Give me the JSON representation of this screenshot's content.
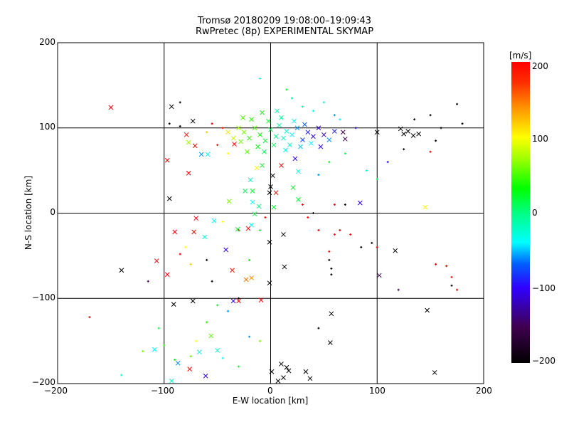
{
  "chart_data": {
    "type": "scatter",
    "title": "Tromsø 20180209 19:08:00–19:09:43",
    "subtitle": "RwPretec (8p) EXPERIMENTAL SKYMAP",
    "xlabel": "E-W location [km]",
    "ylabel": "N-S location [km]",
    "xlim": [
      -200,
      200
    ],
    "ylim": [
      -200,
      200
    ],
    "xticks": [
      "−200",
      "−100",
      "0",
      "100",
      "200"
    ],
    "yticks": [
      "−200",
      "−100",
      "0",
      "100",
      "200"
    ],
    "grid": true,
    "colorbar": {
      "label": "[m/s]",
      "range": [
        -200,
        200
      ],
      "ticks": [
        "200",
        "100",
        "0",
        "−100",
        "−200"
      ]
    },
    "large_markers": [
      [
        -150,
        124,
        200
      ],
      [
        -93,
        125,
        -200
      ],
      [
        -73,
        108,
        -200
      ],
      [
        -34,
        81,
        190
      ],
      [
        -79,
        92,
        190
      ],
      [
        -77,
        83,
        70
      ],
      [
        -65,
        69,
        -60
      ],
      [
        -59,
        69,
        -40
      ],
      [
        -71,
        79,
        190
      ],
      [
        -97,
        62,
        200
      ],
      [
        -77,
        47,
        200
      ],
      [
        -95,
        17,
        -200
      ],
      [
        -70,
        -6,
        200
      ],
      [
        -90,
        -22,
        200
      ],
      [
        -72,
        -22,
        200
      ],
      [
        -62,
        -28,
        -30
      ],
      [
        -53,
        -9,
        -40
      ],
      [
        -107,
        -56,
        200
      ],
      [
        -97,
        -72,
        200
      ],
      [
        -140,
        -67,
        -200
      ],
      [
        -42,
        -43,
        -100
      ],
      [
        -36,
        -67,
        190
      ],
      [
        -23,
        -78,
        150
      ],
      [
        -18,
        -76,
        140
      ],
      [
        -35,
        -103,
        -100
      ],
      [
        -30,
        -103,
        200
      ],
      [
        -91,
        -107,
        -200
      ],
      [
        -73,
        -103,
        -200
      ],
      [
        -9,
        -102,
        200
      ],
      [
        -1,
        -82,
        -200
      ],
      [
        -1,
        -34,
        -200
      ],
      [
        12,
        -25,
        -200
      ],
      [
        13,
        -63,
        -200
      ],
      [
        117,
        -44,
        -200
      ],
      [
        102,
        -73,
        -160
      ],
      [
        147,
        -114,
        -200
      ],
      [
        57,
        -118,
        -200
      ],
      [
        56,
        -152,
        -200
      ],
      [
        154,
        -187,
        -200
      ],
      [
        -109,
        -160,
        -40
      ],
      [
        -87,
        -176,
        -60
      ],
      [
        -67,
        -163,
        -30
      ],
      [
        -50,
        -161,
        -20
      ],
      [
        -56,
        -144,
        50
      ],
      [
        -76,
        -183,
        200
      ],
      [
        -61,
        -191,
        -100
      ],
      [
        1,
        -186,
        -200
      ],
      [
        10,
        -177,
        -200
      ],
      [
        15,
        -181,
        -200
      ],
      [
        12,
        -193,
        -200
      ],
      [
        17,
        -185,
        -200
      ],
      [
        33,
        -186,
        -200
      ],
      [
        37,
        -194,
        -200
      ],
      [
        7,
        -197,
        -200
      ],
      [
        -93,
        -197,
        -20
      ],
      [
        -39,
        14,
        60
      ],
      [
        -24,
        26,
        10
      ],
      [
        -17,
        26,
        20
      ],
      [
        -19,
        39,
        -20
      ],
      [
        0,
        31,
        -200
      ],
      [
        2,
        44,
        -200
      ],
      [
        -1,
        24,
        -200
      ],
      [
        5,
        24,
        190
      ],
      [
        -17,
        13,
        -40
      ],
      [
        -11,
        8,
        0
      ],
      [
        3,
        7,
        20
      ],
      [
        -15,
        -1,
        15
      ],
      [
        -18,
        -14,
        -40
      ],
      [
        -31,
        -19,
        20
      ],
      [
        -21,
        -18,
        200
      ],
      [
        26,
        16,
        20
      ],
      [
        21,
        30,
        20
      ],
      [
        26,
        49,
        -30
      ],
      [
        84,
        12,
        -100
      ],
      [
        145,
        7,
        100
      ],
      [
        100,
        95,
        -200
      ],
      [
        122,
        99,
        -200
      ],
      [
        125,
        93,
        -200
      ],
      [
        129,
        96,
        -200
      ],
      [
        134,
        91,
        -200
      ],
      [
        139,
        93,
        -200
      ],
      [
        70,
        87,
        -150
      ],
      [
        68,
        95,
        -150
      ],
      [
        47,
        78,
        -100
      ],
      [
        23,
        64,
        -100
      ],
      [
        10,
        56,
        200
      ],
      [
        -8,
        56,
        20
      ],
      [
        -13,
        53,
        100
      ],
      [
        -25,
        95,
        60
      ],
      [
        -20,
        88,
        40
      ],
      [
        -15,
        100,
        50
      ],
      [
        -10,
        92,
        30
      ],
      [
        -5,
        85,
        20
      ],
      [
        0,
        98,
        10
      ],
      [
        5,
        90,
        0
      ],
      [
        8,
        103,
        -10
      ],
      [
        12,
        88,
        -20
      ],
      [
        15,
        96,
        -30
      ],
      [
        20,
        92,
        -40
      ],
      [
        25,
        100,
        -60
      ],
      [
        30,
        86,
        -80
      ],
      [
        35,
        95,
        -90
      ],
      [
        40,
        90,
        -100
      ],
      [
        -30,
        100,
        70
      ],
      [
        -28,
        84,
        60
      ],
      [
        -18,
        110,
        40
      ],
      [
        -12,
        78,
        30
      ],
      [
        -2,
        108,
        20
      ],
      [
        3,
        80,
        10
      ],
      [
        10,
        112,
        -5
      ],
      [
        18,
        80,
        -20
      ],
      [
        22,
        108,
        -35
      ],
      [
        28,
        78,
        -50
      ],
      [
        45,
        100,
        -110
      ],
      [
        50,
        92,
        -120
      ],
      [
        55,
        86,
        -60
      ],
      [
        -35,
        88,
        80
      ],
      [
        -22,
        72,
        50
      ],
      [
        -8,
        118,
        30
      ],
      [
        -40,
        95,
        110
      ],
      [
        -6,
        72,
        10
      ],
      [
        14,
        74,
        -30
      ],
      [
        32,
        104,
        -70
      ],
      [
        38,
        82,
        -40
      ],
      [
        60,
        96,
        -90
      ],
      [
        -26,
        112,
        50
      ],
      [
        6,
        120,
        -10
      ]
    ],
    "small_markers": [
      [
        -10,
        158,
        -20
      ],
      [
        15,
        145,
        20
      ],
      [
        20,
        135,
        -10
      ],
      [
        30,
        125,
        0
      ],
      [
        40,
        120,
        -30
      ],
      [
        60,
        115,
        -60
      ],
      [
        50,
        130,
        -20
      ],
      [
        65,
        110,
        -40
      ],
      [
        80,
        100,
        -120
      ],
      [
        70,
        70,
        10
      ],
      [
        55,
        60,
        20
      ],
      [
        45,
        45,
        -60
      ],
      [
        90,
        50,
        -30
      ],
      [
        100,
        40,
        10
      ],
      [
        110,
        60,
        -100
      ],
      [
        125,
        75,
        -200
      ],
      [
        135,
        110,
        -200
      ],
      [
        150,
        115,
        -200
      ],
      [
        160,
        100,
        -200
      ],
      [
        175,
        128,
        -200
      ],
      [
        180,
        105,
        -200
      ],
      [
        155,
        85,
        -200
      ],
      [
        150,
        72,
        200
      ],
      [
        95,
        -35,
        -200
      ],
      [
        100,
        -40,
        200
      ],
      [
        60,
        -25,
        190
      ],
      [
        65,
        -20,
        200
      ],
      [
        75,
        -25,
        200
      ],
      [
        85,
        -40,
        -200
      ],
      [
        55,
        -55,
        -200
      ],
      [
        57,
        -65,
        -200
      ],
      [
        57,
        -72,
        -200
      ],
      [
        55,
        -45,
        200
      ],
      [
        45,
        -20,
        200
      ],
      [
        35,
        -5,
        200
      ],
      [
        40,
        0,
        -200
      ],
      [
        30,
        10,
        200
      ],
      [
        60,
        10,
        200
      ],
      [
        70,
        10,
        -200
      ],
      [
        155,
        -60,
        200
      ],
      [
        165,
        -62,
        200
      ],
      [
        170,
        -75,
        200
      ],
      [
        170,
        -85,
        -200
      ],
      [
        175,
        -90,
        200
      ],
      [
        120,
        -90,
        -150
      ],
      [
        45,
        -135,
        -200
      ],
      [
        -170,
        -122,
        200
      ],
      [
        -115,
        -80,
        -150
      ],
      [
        -105,
        -135,
        20
      ],
      [
        -100,
        -155,
        40
      ],
      [
        -120,
        -162,
        60
      ],
      [
        -90,
        -172,
        30
      ],
      [
        -75,
        -168,
        50
      ],
      [
        -60,
        -128,
        40
      ],
      [
        -50,
        -108,
        20
      ],
      [
        -40,
        -115,
        -60
      ],
      [
        -30,
        -100,
        -200
      ],
      [
        -60,
        -55,
        -200
      ],
      [
        -75,
        -60,
        120
      ],
      [
        -85,
        -48,
        200
      ],
      [
        -80,
        -40,
        100
      ],
      [
        -20,
        -55,
        30
      ],
      [
        -10,
        -20,
        20
      ],
      [
        -5,
        -5,
        200
      ],
      [
        -45,
        -10,
        100
      ],
      [
        -30,
        -20,
        200
      ],
      [
        -55,
        -80,
        -200
      ],
      [
        -85,
        130,
        -200
      ],
      [
        -95,
        105,
        -200
      ],
      [
        -85,
        102,
        -200
      ],
      [
        -55,
        105,
        200
      ],
      [
        -45,
        100,
        190
      ],
      [
        -60,
        95,
        120
      ],
      [
        -40,
        70,
        100
      ],
      [
        -50,
        80,
        190
      ],
      [
        -20,
        -145,
        -60
      ],
      [
        -10,
        -150,
        60
      ],
      [
        -30,
        -180,
        20
      ],
      [
        -45,
        -170,
        -40
      ],
      [
        -70,
        -150,
        100
      ],
      [
        -140,
        -190,
        -30
      ]
    ]
  }
}
